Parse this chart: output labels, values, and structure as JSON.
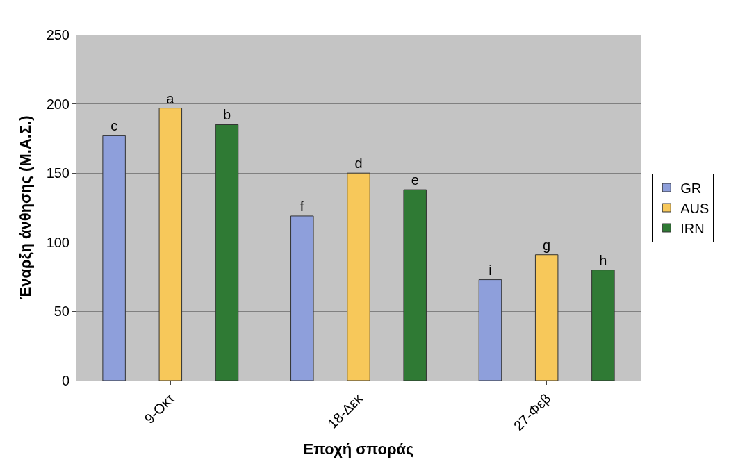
{
  "chart_data": {
    "type": "bar",
    "xlabel": "Εποχή σποράς",
    "ylabel": "Έναρξη άνθησης (Μ.Α.Σ.)",
    "categories": [
      "9-Οκτ",
      "18-Δεκ",
      "27-Φεβ"
    ],
    "series": [
      {
        "name": "GR",
        "color": "#8e9fdb",
        "values": [
          177,
          119,
          73
        ],
        "value_labels": [
          "c",
          "f",
          "i"
        ]
      },
      {
        "name": "AUS",
        "color": "#f7c85a",
        "values": [
          197,
          150,
          91
        ],
        "value_labels": [
          "a",
          "d",
          "g"
        ]
      },
      {
        "name": "IRN",
        "color": "#2f7a34",
        "values": [
          185,
          138,
          80
        ],
        "value_labels": [
          "b",
          "e",
          "h"
        ]
      }
    ],
    "ylim": [
      0,
      250
    ],
    "yticks": [
      0,
      50,
      100,
      150,
      200,
      250
    ],
    "grid": "y",
    "legend": "right"
  }
}
